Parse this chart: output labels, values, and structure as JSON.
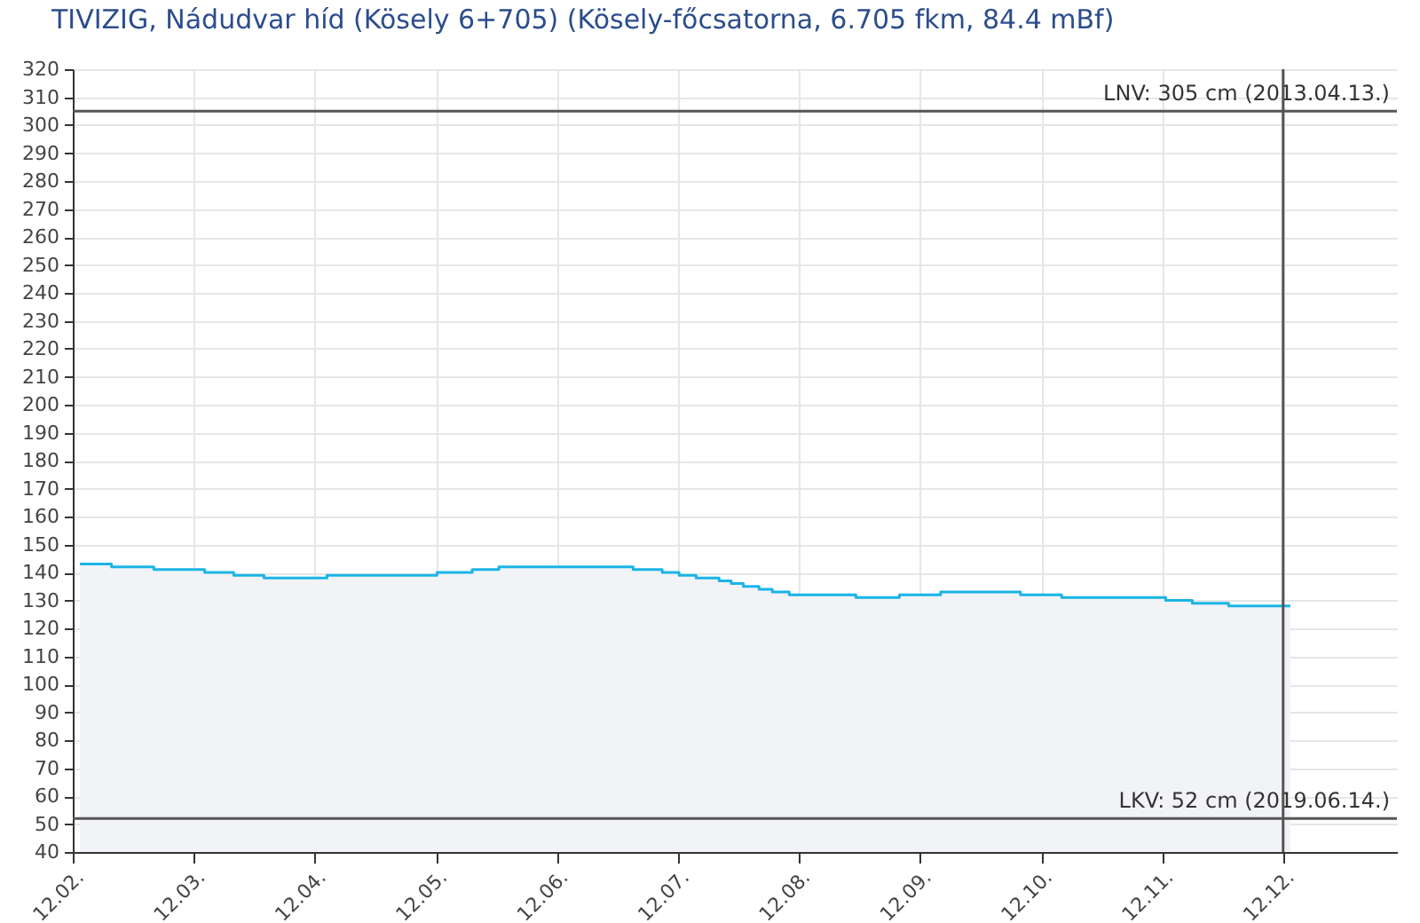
{
  "chart_data": {
    "type": "area",
    "title": "TIVIZIG, Nádudvar híd (Kösely 6+705) (Kösely-főcsatorna, 6.705 fkm, 84.4 mBf)",
    "x": [
      "--12-02T01:26",
      "--12-02T07:41",
      "--12-02T16:05",
      "--12-03T02:10",
      "--12-03T07:55",
      "--12-03T13:55",
      "--12-04T02:24",
      "--12-05T00:14",
      "--12-05T07:12",
      "--12-05T12:29",
      "--12-06T15:07",
      "--12-06T20:53",
      "--12-07T00:14",
      "--12-07T03:36",
      "--12-07T08:10",
      "--12-07T10:34",
      "--12-07T12:58",
      "--12-07T16:05",
      "--12-07T18:43",
      "--12-07T22:05",
      "--12-08T11:17",
      "--12-08T19:55",
      "--12-09T04:05",
      "--12-09T19:55",
      "--12-10T04:05",
      "--12-11T00:43",
      "--12-11T06:00",
      "--12-11T13:12",
      "--12-12T01:26"
    ],
    "series": [
      {
        "color": "#1ab4e6",
        "values": [
          143,
          142,
          141,
          140,
          139,
          138,
          139,
          140,
          141,
          142,
          141,
          140,
          139,
          138,
          137,
          136,
          135,
          134,
          133,
          132,
          131,
          132,
          133,
          132,
          131,
          130,
          129,
          128,
          128
        ]
      }
    ],
    "xlim": [
      "--12-02",
      "--12-12T22:34"
    ],
    "xticks": [
      {
        "value": "--12-02",
        "label": "12.02."
      },
      {
        "value": "--12-03",
        "label": "12.03."
      },
      {
        "value": "--12-04",
        "label": "12.04."
      },
      {
        "value": "--12-05",
        "label": "12.05."
      },
      {
        "value": "--12-06",
        "label": "12.06."
      },
      {
        "value": "--12-07",
        "label": "12.07."
      },
      {
        "value": "--12-08",
        "label": "12.08."
      },
      {
        "value": "--12-09",
        "label": "12.09."
      },
      {
        "value": "--12-10",
        "label": "12.10."
      },
      {
        "value": "--12-11",
        "label": "12.11."
      },
      {
        "value": "--12-12",
        "label": "12.12."
      }
    ],
    "ylim": [
      40,
      320
    ],
    "yticks": [
      40,
      50,
      60,
      70,
      80,
      90,
      100,
      110,
      120,
      130,
      140,
      150,
      160,
      170,
      180,
      190,
      200,
      210,
      220,
      230,
      240,
      250,
      260,
      270,
      280,
      290,
      300,
      310,
      320
    ],
    "ref_lines": [
      {
        "axis": "y",
        "value": 305,
        "label": "LNV: 305 cm (2013.04.13.)",
        "color": "#555555"
      },
      {
        "axis": "y",
        "value": 52,
        "label": "LKV: 52 cm (2019.06.14.)",
        "color": "#555555"
      },
      {
        "axis": "x",
        "value": "--12-12",
        "color": "#555555"
      }
    ],
    "grid": true,
    "marker": "none"
  }
}
